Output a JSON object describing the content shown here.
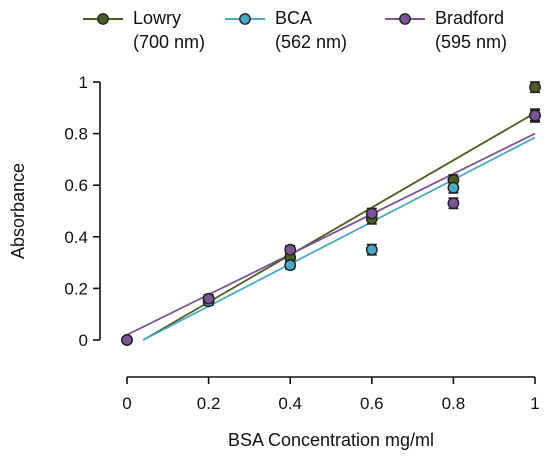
{
  "chart_data": {
    "type": "scatter",
    "title": "",
    "xlabel": "BSA Concentration mg/ml",
    "ylabel": "Absorbance",
    "xlim": [
      0,
      1
    ],
    "ylim": [
      0,
      1
    ],
    "x_ticks": [
      "0",
      "0.2",
      "0.4",
      "0.6",
      "0.8",
      "1"
    ],
    "y_ticks": [
      "0",
      "0.2",
      "0.4",
      "0.6",
      "0.8",
      "1"
    ],
    "grid": false,
    "legend_position": "top",
    "x": [
      0,
      0.2,
      0.4,
      0.6,
      0.8,
      1
    ],
    "series": [
      {
        "name": "Lowry (700 nm)",
        "legend_lines": [
          "Lowry",
          "(700 nm)"
        ],
        "color": "#4b5d23",
        "values": [
          0,
          0.16,
          0.32,
          0.47,
          0.62,
          0.98
        ],
        "errors": [
          0,
          0.015,
          0.015,
          0.02,
          0.02,
          0.02
        ],
        "fit": {
          "x0": 0.04,
          "y0": 0.0,
          "x1": 1.0,
          "y1": 0.88
        }
      },
      {
        "name": "BCA (562 nm)",
        "legend_lines": [
          "BCA",
          "(562 nm)"
        ],
        "color": "#4aa8c4",
        "values": [
          0,
          0.15,
          0.29,
          0.35,
          0.59,
          0.87
        ],
        "errors": [
          0,
          0.015,
          0.015,
          0.02,
          0.02,
          0.025
        ],
        "fit": {
          "x0": 0.04,
          "y0": 0.0,
          "x1": 1.0,
          "y1": 0.785
        }
      },
      {
        "name": "Bradford (595 nm)",
        "legend_lines": [
          "Bradford",
          "(595 nm)"
        ],
        "color": "#7a5496",
        "values": [
          0,
          0.16,
          0.35,
          0.49,
          0.53,
          0.87
        ],
        "errors": [
          0,
          0.015,
          0.015,
          0.02,
          0.02,
          0.02
        ],
        "fit": {
          "x0": 0.0,
          "y0": 0.02,
          "x1": 1.0,
          "y1": 0.8
        }
      }
    ]
  }
}
